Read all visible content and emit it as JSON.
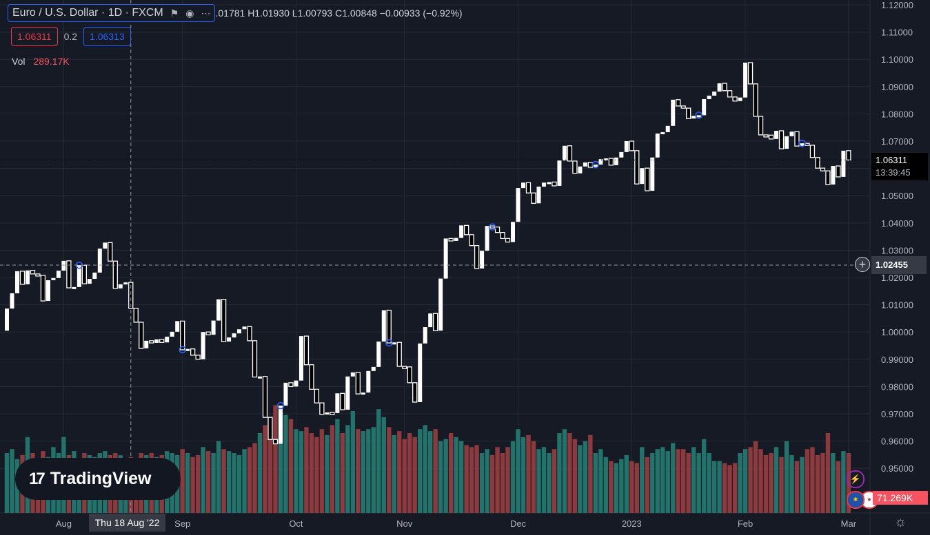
{
  "header": {
    "symbol": "Euro / U.S. Dollar · 1D · FXCM",
    "ohlc": ".01781 H1.01930 L1.00793 C1.00848 −0.00933 (−0.92%)",
    "bid": "1.06311",
    "spread": "0.2",
    "ask": "1.06313",
    "vol_label": "Vol",
    "vol_value": "289.17K"
  },
  "logo": {
    "text": "TradingView"
  },
  "icons": [
    "flag-icon",
    "eye-icon",
    "more-icon",
    "plus-icon",
    "lightning-icon",
    "eu-flag-icon",
    "us-flag-icon",
    "gear-icon"
  ],
  "colors": {
    "up_volume": "#22736b",
    "down_volume": "#8c3a3d",
    "background": "#161a25",
    "grid": "#252a36",
    "event": "#2962ff"
  },
  "price_tags": {
    "last_price": "1.06311",
    "countdown": "13:39:45",
    "crosshair_price": "1.02455",
    "volume_last": "71.269K",
    "crosshair_date": "Thu 18 Aug '22"
  },
  "chart_data": {
    "type": "candlestick",
    "title": "Euro / U.S. Dollar · 1D · FXCM",
    "ylim": [
      0.945,
      1.12
    ],
    "y_ticks": [
      "1.12000",
      "1.11000",
      "1.10000",
      "1.09000",
      "1.08000",
      "1.07000",
      "1.06000",
      "1.05000",
      "1.04000",
      "1.03000",
      "1.02000",
      "1.01000",
      "1.00000",
      "0.99000",
      "0.98000",
      "0.97000",
      "0.96000",
      "0.95000"
    ],
    "x_labels": [
      {
        "label": "Aug",
        "index": 11
      },
      {
        "label": "Sep",
        "index": 34
      },
      {
        "label": "Oct",
        "index": 56
      },
      {
        "label": "Nov",
        "index": 77
      },
      {
        "label": "Dec",
        "index": 99
      },
      {
        "label": "2023",
        "index": 121
      },
      {
        "label": "Feb",
        "index": 143
      },
      {
        "label": "Mar",
        "index": 163
      }
    ],
    "first_open": 1.0005,
    "close": [
      1.0086,
      1.0142,
      1.0223,
      1.0175,
      1.0226,
      1.0213,
      1.0208,
      1.0114,
      1.019,
      1.0198,
      1.0225,
      1.0261,
      1.0162,
      1.0165,
      1.0245,
      1.0177,
      1.0195,
      1.0218,
      1.0306,
      1.0328,
      1.026,
      1.016,
      1.0175,
      1.0182,
      1.0087,
      1.0036,
      0.994,
      0.9968,
      0.996,
      0.9973,
      0.9962,
      0.9983,
      1.0001,
      1.004,
      0.9935,
      0.9938,
      0.9915,
      0.99,
      1.0,
      0.999,
      1.0042,
      1.012,
      0.9965,
      0.998,
      0.9995,
      1.001,
      1.002,
      0.9968,
      0.9835,
      0.9837,
      0.9687,
      0.9606,
      0.959,
      0.973,
      0.9814,
      0.98,
      0.9822,
      0.9985,
      0.988,
      0.979,
      0.974,
      0.9698,
      0.9705,
      0.9703,
      0.9775,
      0.9715,
      0.9837,
      0.9852,
      0.9773,
      0.9778,
      0.9857,
      0.9872,
      0.9965,
      1.008,
      0.996,
      0.9962,
      0.9874,
      0.9872,
      0.9814,
      0.9743,
      0.9958,
      1.0018,
      1.0068,
      1.0005,
      1.0196,
      1.0343,
      1.0334,
      1.0345,
      1.0391,
      1.0357,
      1.0317,
      1.0233,
      1.0298,
      1.0389,
      1.0385,
      1.0365,
      1.0343,
      1.033,
      1.0404,
      1.0528,
      1.0548,
      1.051,
      1.0472,
      1.0533,
      1.0548,
      1.055,
      1.0536,
      1.0629,
      1.0683,
      1.0627,
      1.0582,
      1.0607,
      1.0622,
      1.0604,
      1.0614,
      1.0634,
      1.0637,
      1.0612,
      1.064,
      1.066,
      1.07,
      1.0665,
      1.0543,
      1.0601,
      1.0518,
      1.064,
      1.0728,
      1.0733,
      1.0756,
      1.0852,
      1.0829,
      1.0821,
      1.0783,
      1.0793,
      1.0795,
      1.0854,
      1.0867,
      1.0882,
      1.0912,
      1.0885,
      1.0862,
      1.0847,
      1.086,
      1.0988,
      1.091,
      1.0791,
      1.0723,
      1.0722,
      1.0708,
      1.0738,
      1.0672,
      1.0718,
      1.0735,
      1.0682,
      1.0692,
      1.0685,
      1.064,
      1.0601,
      1.0591,
      1.0541,
      1.0609,
      1.0569,
      1.0665,
      1.0631
    ],
    "volume_k": [
      300,
      320,
      270,
      290,
      380,
      300,
      260,
      310,
      280,
      330,
      300,
      380,
      290,
      310,
      270,
      300,
      290,
      280,
      300,
      310,
      290,
      300,
      289,
      270,
      280,
      270,
      300,
      290,
      300,
      280,
      290,
      310,
      300,
      290,
      320,
      300,
      280,
      290,
      330,
      310,
      300,
      360,
      320,
      310,
      300,
      290,
      320,
      330,
      350,
      400,
      440,
      430,
      540,
      510,
      490,
      470,
      420,
      410,
      430,
      400,
      380,
      420,
      390,
      440,
      470,
      400,
      440,
      510,
      420,
      410,
      420,
      430,
      520,
      480,
      430,
      390,
      410,
      370,
      400,
      380,
      420,
      440,
      410,
      420,
      360,
      370,
      400,
      380,
      360,
      340,
      330,
      340,
      300,
      320,
      290,
      330,
      300,
      330,
      360,
      420,
      380,
      390,
      360,
      320,
      330,
      300,
      320,
      400,
      420,
      400,
      370,
      340,
      360,
      390,
      300,
      320,
      280,
      260,
      250,
      270,
      290,
      260,
      250,
      330,
      280,
      300,
      320,
      330,
      310,
      350,
      320,
      320,
      300,
      330,
      300,
      370,
      300,
      260,
      260,
      250,
      240,
      250,
      300,
      320,
      330,
      360,
      320,
      290,
      300,
      330,
      280,
      360,
      290,
      260,
      280,
      320,
      330,
      290,
      300,
      400,
      300,
      260,
      310,
      300
    ],
    "event_markers": [
      14,
      34,
      53,
      74,
      94,
      114,
      134,
      154
    ],
    "last_price": 1.06311,
    "crosshair": {
      "index": 24,
      "price": 1.02455
    }
  }
}
